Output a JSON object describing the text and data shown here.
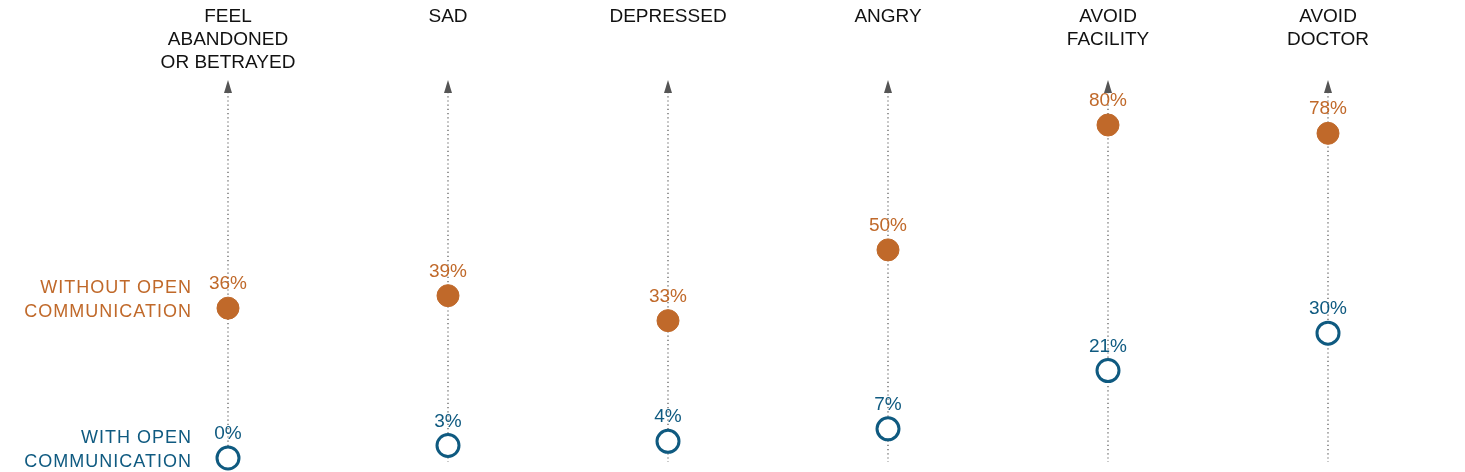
{
  "chart_data": {
    "type": "scatter",
    "categories": [
      "FEEL\nABANDONED\nOR BETRAYED",
      "SAD",
      "DEPRESSED",
      "ANGRY",
      "AVOID\nFACILITY",
      "AVOID\nDOCTOR"
    ],
    "series": [
      {
        "name": "WITHOUT OPEN\nCOMMUNICATION",
        "color": "#c0692a",
        "values": [
          36,
          39,
          33,
          50,
          80,
          78
        ],
        "value_labels": [
          "36%",
          "39%",
          "33%",
          "50%",
          "80%",
          "78%"
        ]
      },
      {
        "name": "WITH OPEN\nCOMMUNICATION",
        "color": "#0f5a80",
        "values": [
          0,
          3,
          4,
          7,
          21,
          30
        ],
        "value_labels": [
          "0%",
          "3%",
          "4%",
          "7%",
          "21%",
          "30%"
        ]
      }
    ],
    "grid": "x",
    "marker": "circle"
  }
}
